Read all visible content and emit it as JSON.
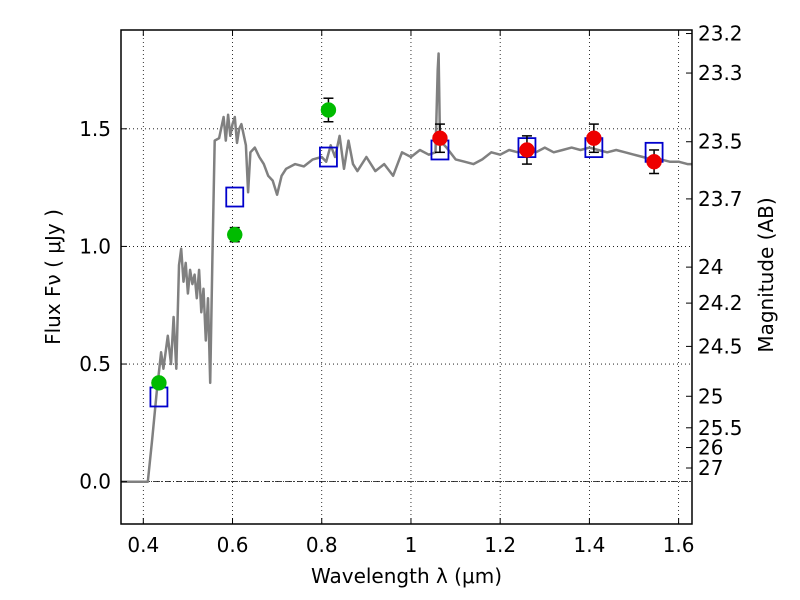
{
  "chart_data": {
    "type": "scatter",
    "xlabel": "Wavelength  λ (μm)",
    "ylabel": "Flux  Fν  ( μJy )",
    "ylabel_right": "Magnitude (AB)",
    "xlim": [
      0.35,
      1.63
    ],
    "ylim": [
      -0.18,
      1.92
    ],
    "grid": true,
    "x_ticks": [
      0.4,
      0.6,
      0.8,
      1.0,
      1.2,
      1.4,
      1.6
    ],
    "x_tick_labels": [
      "0.4",
      "0.6",
      "0.8",
      "1",
      "1.2",
      "1.4",
      "1.6"
    ],
    "y_ticks": [
      0.0,
      0.5,
      1.0,
      1.5
    ],
    "y_tick_labels": [
      "0.0",
      "0.5",
      "1.0",
      "1.5"
    ],
    "right_ticks": [
      {
        "label": "23.2",
        "flux": 1.905
      },
      {
        "label": "23.3",
        "flux": 1.737
      },
      {
        "label": "23.5",
        "flux": 1.445
      },
      {
        "label": "23.7",
        "flux": 1.202
      },
      {
        "label": "24",
        "flux": 0.912
      },
      {
        "label": "24.2",
        "flux": 0.759
      },
      {
        "label": "24.5",
        "flux": 0.575
      },
      {
        "label": "25",
        "flux": 0.363
      },
      {
        "label": "25.5",
        "flux": 0.229
      },
      {
        "label": "26",
        "flux": 0.145
      },
      {
        "label": "27",
        "flux": 0.058
      }
    ],
    "colors": {
      "model": "#808080",
      "model_photometry": "#0000cc",
      "green_points": "#00bb00",
      "red_points": "#ee0000",
      "grid": "#000000"
    },
    "series": [
      {
        "kind": "line",
        "points": [
          [
            0.35,
            0.0
          ],
          [
            0.41,
            0.0
          ],
          [
            0.42,
            0.18
          ],
          [
            0.43,
            0.38
          ],
          [
            0.44,
            0.55
          ],
          [
            0.445,
            0.48
          ],
          [
            0.455,
            0.62
          ],
          [
            0.462,
            0.5
          ],
          [
            0.468,
            0.7
          ],
          [
            0.474,
            0.48
          ],
          [
            0.48,
            0.92
          ],
          [
            0.485,
            0.99
          ],
          [
            0.49,
            0.85
          ],
          [
            0.495,
            0.93
          ],
          [
            0.5,
            0.8
          ],
          [
            0.505,
            0.9
          ],
          [
            0.51,
            0.84
          ],
          [
            0.515,
            0.88
          ],
          [
            0.52,
            0.78
          ],
          [
            0.525,
            0.9
          ],
          [
            0.53,
            0.72
          ],
          [
            0.535,
            0.82
          ],
          [
            0.54,
            0.6
          ],
          [
            0.545,
            0.78
          ],
          [
            0.55,
            0.42
          ],
          [
            0.555,
            0.95
          ],
          [
            0.56,
            1.45
          ],
          [
            0.57,
            1.46
          ],
          [
            0.58,
            1.55
          ],
          [
            0.585,
            1.45
          ],
          [
            0.59,
            1.56
          ],
          [
            0.595,
            1.47
          ],
          [
            0.6,
            1.52
          ],
          [
            0.605,
            1.55
          ],
          [
            0.61,
            1.44
          ],
          [
            0.615,
            1.5
          ],
          [
            0.62,
            1.52
          ],
          [
            0.63,
            1.43
          ],
          [
            0.635,
            1.23
          ],
          [
            0.64,
            1.4
          ],
          [
            0.65,
            1.42
          ],
          [
            0.66,
            1.38
          ],
          [
            0.67,
            1.35
          ],
          [
            0.68,
            1.3
          ],
          [
            0.69,
            1.28
          ],
          [
            0.7,
            1.22
          ],
          [
            0.71,
            1.3
          ],
          [
            0.72,
            1.33
          ],
          [
            0.74,
            1.35
          ],
          [
            0.76,
            1.34
          ],
          [
            0.78,
            1.37
          ],
          [
            0.8,
            1.38
          ],
          [
            0.81,
            1.36
          ],
          [
            0.82,
            1.43
          ],
          [
            0.83,
            1.38
          ],
          [
            0.84,
            1.47
          ],
          [
            0.85,
            1.33
          ],
          [
            0.86,
            1.45
          ],
          [
            0.87,
            1.35
          ],
          [
            0.88,
            1.32
          ],
          [
            0.9,
            1.38
          ],
          [
            0.92,
            1.32
          ],
          [
            0.94,
            1.35
          ],
          [
            0.96,
            1.3
          ],
          [
            0.98,
            1.4
          ],
          [
            1.0,
            1.38
          ],
          [
            1.02,
            1.41
          ],
          [
            1.04,
            1.39
          ],
          [
            1.055,
            1.4
          ],
          [
            1.06,
            1.75
          ],
          [
            1.062,
            1.82
          ],
          [
            1.065,
            1.45
          ],
          [
            1.08,
            1.42
          ],
          [
            1.1,
            1.37
          ],
          [
            1.12,
            1.36
          ],
          [
            1.14,
            1.35
          ],
          [
            1.16,
            1.37
          ],
          [
            1.18,
            1.4
          ],
          [
            1.2,
            1.39
          ],
          [
            1.22,
            1.41
          ],
          [
            1.24,
            1.4
          ],
          [
            1.26,
            1.41
          ],
          [
            1.28,
            1.4
          ],
          [
            1.3,
            1.42
          ],
          [
            1.32,
            1.4
          ],
          [
            1.34,
            1.41
          ],
          [
            1.36,
            1.42
          ],
          [
            1.38,
            1.41
          ],
          [
            1.4,
            1.42
          ],
          [
            1.42,
            1.41
          ],
          [
            1.44,
            1.4
          ],
          [
            1.46,
            1.41
          ],
          [
            1.48,
            1.4
          ],
          [
            1.5,
            1.39
          ],
          [
            1.52,
            1.38
          ],
          [
            1.54,
            1.37
          ],
          [
            1.56,
            1.37
          ],
          [
            1.58,
            1.36
          ],
          [
            1.6,
            1.36
          ],
          [
            1.62,
            1.35
          ],
          [
            1.63,
            1.35
          ]
        ]
      },
      {
        "kind": "open-squares",
        "x": [
          0.435,
          0.605,
          0.815,
          1.065,
          1.26,
          1.41,
          1.545
        ],
        "y": [
          0.36,
          1.21,
          1.38,
          1.41,
          1.42,
          1.42,
          1.4
        ]
      },
      {
        "kind": "filled-circles",
        "x": [
          0.435,
          0.605,
          0.815
        ],
        "y": [
          0.42,
          1.05,
          1.58
        ],
        "err": [
          0.015,
          0.03,
          0.05
        ]
      },
      {
        "kind": "filled-circles",
        "x": [
          1.065,
          1.26,
          1.41,
          1.545
        ],
        "y": [
          1.46,
          1.41,
          1.46,
          1.36
        ],
        "err": [
          0.06,
          0.06,
          0.06,
          0.05
        ]
      }
    ]
  }
}
